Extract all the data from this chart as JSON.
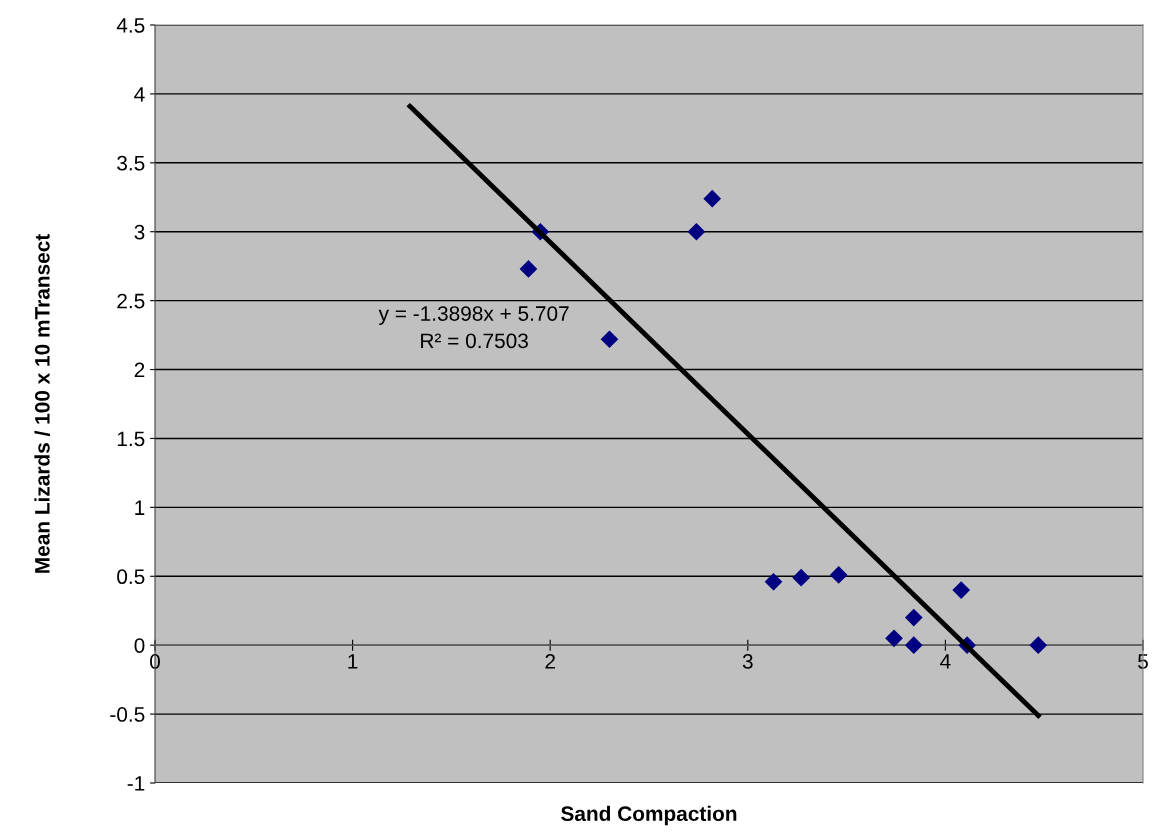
{
  "chart_data": {
    "type": "scatter",
    "xlabel": "Sand Compaction",
    "ylabel": "Mean Lizards / 100 x 10 mTransect",
    "xlim": [
      0,
      5
    ],
    "xticks": [
      0,
      1,
      2,
      3,
      4,
      5
    ],
    "ylim": [
      -1,
      4.5
    ],
    "yticks": [
      -1,
      -0.5,
      0,
      0.5,
      1,
      1.5,
      2,
      2.5,
      3,
      3.5,
      4,
      4.5
    ],
    "grid": "y",
    "marker": "diamond",
    "legend": false,
    "series": [
      {
        "color": "#000080",
        "x": [
          1.89,
          1.95,
          2.3,
          2.74,
          2.82,
          3.13,
          3.27,
          3.46,
          3.74,
          3.84,
          3.84,
          4.08,
          4.11,
          4.47
        ],
        "values": [
          2.73,
          3.0,
          2.22,
          3.0,
          3.24,
          0.46,
          0.49,
          0.51,
          0.05,
          0.2,
          0.0,
          0.4,
          0.0,
          0.0
        ]
      },
      {
        "type": "line",
        "color": "#000000",
        "marker": "none",
        "x": [
          1.29,
          4.47
        ],
        "values": [
          3.91,
          -0.51
        ]
      }
    ],
    "annotations": [
      "y = -1.3898x + 5.707",
      "R² = 0.7503"
    ]
  }
}
